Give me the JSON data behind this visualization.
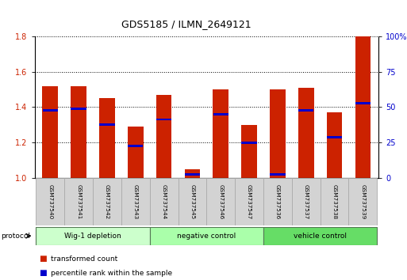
{
  "title": "GDS5185 / ILMN_2649121",
  "samples": [
    "GSM737540",
    "GSM737541",
    "GSM737542",
    "GSM737543",
    "GSM737544",
    "GSM737545",
    "GSM737546",
    "GSM737547",
    "GSM737536",
    "GSM737537",
    "GSM737538",
    "GSM737539"
  ],
  "transformed_count": [
    1.52,
    1.52,
    1.45,
    1.29,
    1.47,
    1.05,
    1.5,
    1.3,
    1.5,
    1.51,
    1.37,
    1.8
  ],
  "percentile_rank": [
    1.38,
    1.39,
    1.3,
    1.18,
    1.33,
    1.02,
    1.36,
    1.2,
    1.02,
    1.38,
    1.23,
    1.42
  ],
  "groups": [
    {
      "label": "Wig-1 depletion",
      "start": 0,
      "end": 3,
      "color": "#ccffcc"
    },
    {
      "label": "negative control",
      "start": 4,
      "end": 7,
      "color": "#aaffaa"
    },
    {
      "label": "vehicle control",
      "start": 8,
      "end": 11,
      "color": "#66dd66"
    }
  ],
  "bar_color": "#cc2200",
  "percentile_color": "#0000cc",
  "ylim_left": [
    1.0,
    1.8
  ],
  "yticks_left": [
    1.0,
    1.2,
    1.4,
    1.6,
    1.8
  ],
  "ylim_right": [
    0,
    100
  ],
  "yticks_right": [
    0,
    25,
    50,
    75,
    100
  ],
  "ytick_labels_right": [
    "0",
    "25",
    "50",
    "75",
    "100%"
  ],
  "bar_width": 0.55,
  "protocol_label": "protocol",
  "legend_items": [
    {
      "label": "transformed count",
      "color": "#cc2200"
    },
    {
      "label": "percentile rank within the sample",
      "color": "#0000cc"
    }
  ],
  "background_color": "#ffffff",
  "tick_label_color_left": "#cc2200",
  "tick_label_color_right": "#0000cc"
}
